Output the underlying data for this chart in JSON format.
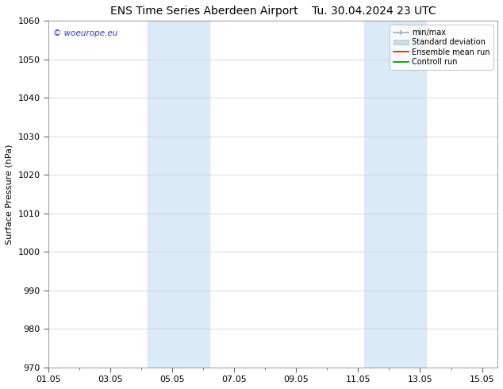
{
  "title_left": "ENS Time Series Aberdeen Airport",
  "title_right": "Tu. 30.04.2024 23 UTC",
  "ylabel": "Surface Pressure (hPa)",
  "ylim": [
    970,
    1060
  ],
  "yticks": [
    970,
    980,
    990,
    1000,
    1010,
    1020,
    1030,
    1040,
    1050,
    1060
  ],
  "xlim_start": 0.0,
  "xlim_end": 14.5,
  "xtick_labels": [
    "01.05",
    "03.05",
    "05.05",
    "07.05",
    "09.05",
    "11.05",
    "13.05",
    "15.05"
  ],
  "xtick_positions": [
    0,
    2,
    4,
    6,
    8,
    10,
    12,
    14
  ],
  "band1_x0": 3.2,
  "band1_x1": 4.2,
  "band1b_x0": 4.2,
  "band1b_x1": 5.2,
  "band2_x0": 10.2,
  "band2_x1": 11.2,
  "band2b_x0": 11.2,
  "band2b_x1": 12.2,
  "band_color_light": "#daeaf6",
  "band_color_dark": "#c5dcee",
  "watermark": "© woeurope.eu",
  "watermark_color": "#3333cc",
  "bg_color": "#ffffff",
  "plot_bg_color": "#ffffff",
  "grid_color": "#cccccc",
  "title_fontsize": 10,
  "axis_label_fontsize": 8,
  "tick_fontsize": 8,
  "legend_color_minmax": "#aaaaaa",
  "legend_color_std": "#ccdde8",
  "legend_color_ens": "#ff0000",
  "legend_color_ctrl": "#008800"
}
